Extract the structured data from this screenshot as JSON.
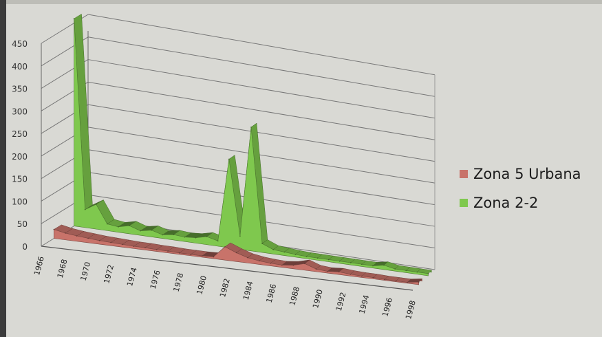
{
  "chart_data": {
    "type": "area",
    "title": "",
    "xlabel": "",
    "ylabel": "",
    "ylim": [
      0,
      450
    ],
    "ytick_labels": [
      "0",
      "50",
      "100",
      "150",
      "200",
      "250",
      "300",
      "350",
      "400",
      "450"
    ],
    "categories": [
      "1966",
      "1967",
      "1968",
      "1969",
      "1970",
      "1971",
      "1972",
      "1973",
      "1974",
      "1975",
      "1976",
      "1977",
      "1978",
      "1979",
      "1980",
      "1981",
      "1982",
      "1983",
      "1984",
      "1985",
      "1986",
      "1987",
      "1988",
      "1989",
      "1990",
      "1991",
      "1992",
      "1993",
      "1994",
      "1995",
      "1996",
      "1997",
      "1998"
    ],
    "xtick_labels": [
      "1966",
      "1968",
      "1970",
      "1972",
      "1974",
      "1976",
      "1978",
      "1980",
      "1982",
      "1984",
      "1986",
      "1988",
      "1990",
      "1992",
      "1994",
      "1996",
      "1998"
    ],
    "series": [
      {
        "name": "Zona 5 Urbana",
        "color": "#c8736a",
        "values": [
          20,
          15,
          12,
          10,
          8,
          7,
          6,
          5,
          5,
          4,
          4,
          3,
          3,
          3,
          4,
          30,
          20,
          12,
          8,
          6,
          5,
          8,
          15,
          6,
          4,
          6,
          4,
          3,
          3,
          2,
          2,
          2,
          6
        ]
      },
      {
        "name": "Zona 2-2",
        "color": "#7fc84e",
        "values": [
          460,
          40,
          55,
          15,
          12,
          18,
          10,
          15,
          8,
          12,
          10,
          12,
          18,
          12,
          200,
          30,
          280,
          20,
          10,
          8,
          6,
          5,
          5,
          5,
          5,
          5,
          5,
          5,
          10,
          5,
          5,
          5,
          5
        ]
      }
    ],
    "grid": true,
    "legend_position": "right"
  }
}
